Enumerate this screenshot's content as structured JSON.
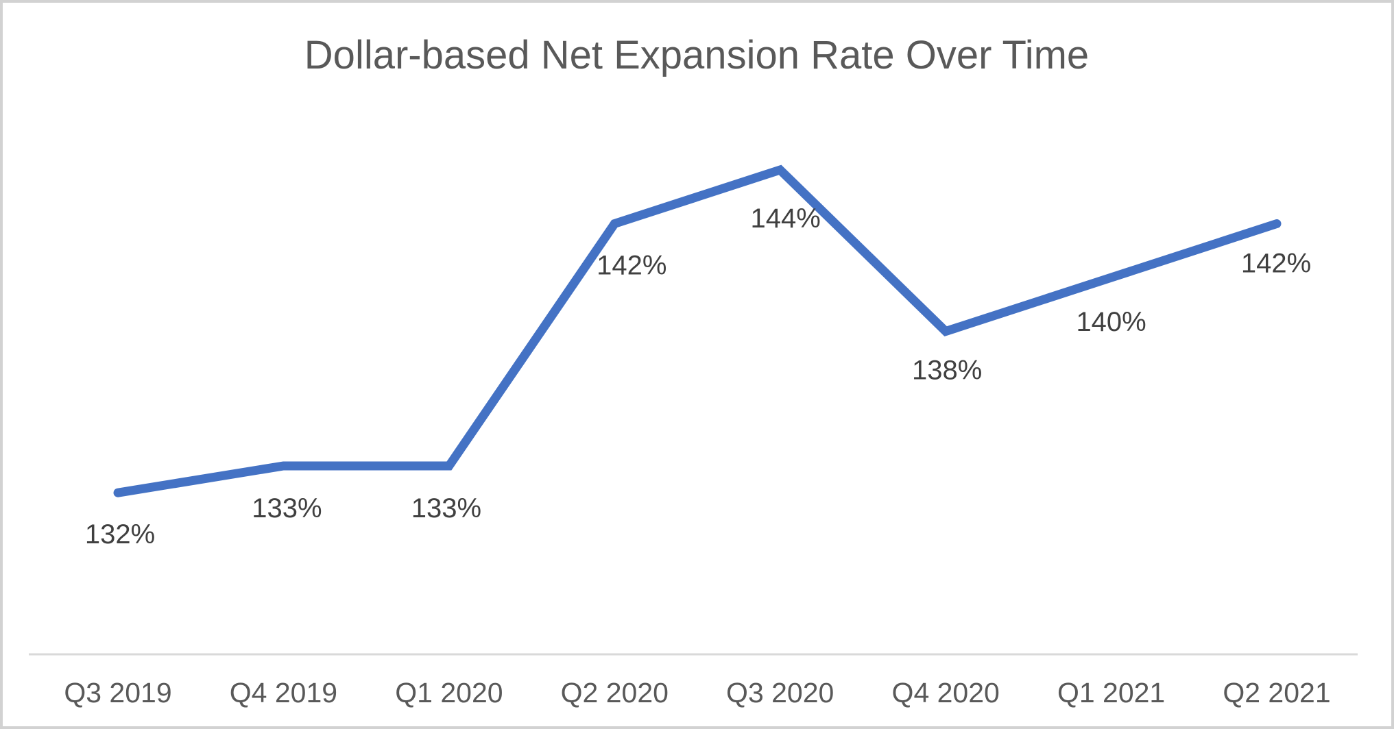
{
  "chart_data": {
    "type": "line",
    "title": "Dollar-based Net Expansion Rate Over Time",
    "categories": [
      "Q3 2019",
      "Q4 2019",
      "Q1 2020",
      "Q2 2020",
      "Q3 2020",
      "Q4 2020",
      "Q1 2021",
      "Q2 2021"
    ],
    "values": [
      132,
      133,
      133,
      142,
      144,
      138,
      140,
      142
    ],
    "data_labels": [
      "132%",
      "133%",
      "133%",
      "142%",
      "144%",
      "138%",
      "140%",
      "142%"
    ],
    "xlabel": "",
    "ylabel": "",
    "ylim": [
      126,
      146
    ],
    "legend_position": "none",
    "grid": false,
    "data_label_position": "below"
  },
  "colors": {
    "series_line": "#4472C4",
    "title_text": "#595959",
    "data_label_text": "#404040",
    "axis_tick_text": "#595959",
    "axis_line": "#D9D9D9",
    "frame_border": "#D2D2D2",
    "background": "#FFFFFF"
  }
}
